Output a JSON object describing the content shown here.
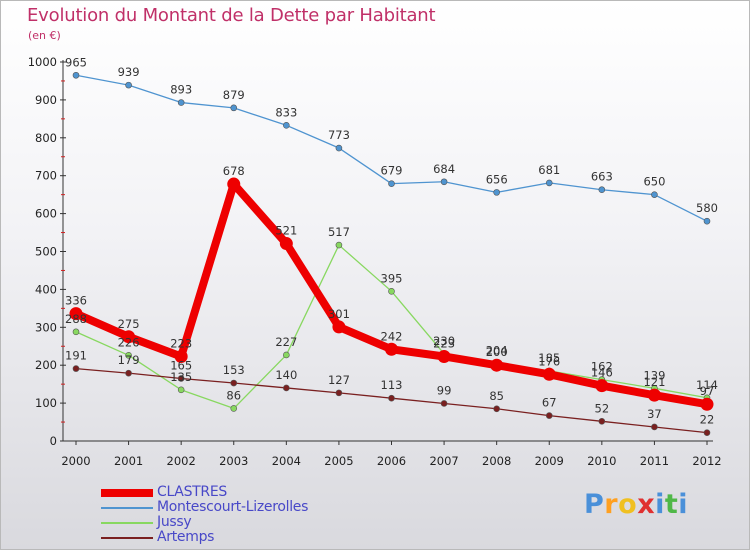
{
  "title": "Evolution du Montant de la Dette par Habitant",
  "subtitle": "(en €)",
  "logo": {
    "text": "Proxiti"
  },
  "chart_data": {
    "type": "line",
    "title": "Evolution du Montant de la Dette par Habitant",
    "subtitle": "(en €)",
    "x": [
      2000,
      2001,
      2002,
      2003,
      2004,
      2005,
      2006,
      2007,
      2008,
      2009,
      2010,
      2011,
      2012
    ],
    "ylim": [
      0,
      1000
    ],
    "yticks": [
      0,
      100,
      200,
      300,
      400,
      500,
      600,
      700,
      800,
      900,
      1000
    ],
    "grid": false,
    "legend_position": "bottom-left",
    "series": [
      {
        "name": "CLASTRES",
        "color": "#ee0000",
        "emphasis": true,
        "values": [
          336,
          275,
          223,
          678,
          521,
          301,
          242,
          223,
          200,
          176,
          146,
          121,
          97
        ]
      },
      {
        "name": "Montescourt-Lizerolles",
        "color": "#4f94d0",
        "emphasis": false,
        "values": [
          965,
          939,
          893,
          879,
          833,
          773,
          679,
          684,
          656,
          681,
          663,
          650,
          580
        ]
      },
      {
        "name": "Jussy",
        "color": "#88d860",
        "emphasis": false,
        "values": [
          288,
          226,
          135,
          86,
          227,
          517,
          395,
          230,
          204,
          185,
          162,
          139,
          114
        ]
      },
      {
        "name": "Artemps",
        "color": "#7a2020",
        "emphasis": false,
        "values": [
          191,
          179,
          165,
          153,
          140,
          127,
          113,
          99,
          85,
          67,
          52,
          37,
          22
        ]
      }
    ]
  }
}
